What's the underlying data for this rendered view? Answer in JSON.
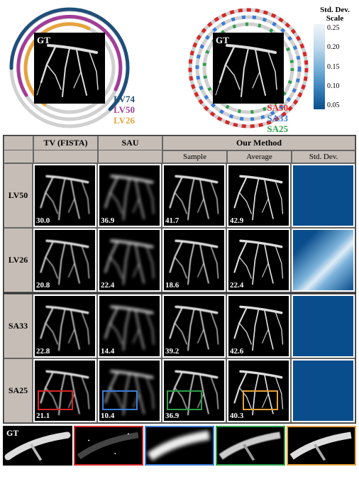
{
  "figure_type": "scientific-figure-comparison",
  "colors": {
    "lv74": "#1f4e79",
    "lv50": "#a23d97",
    "lv26": "#e8a33d",
    "sa50": "#d62728",
    "sa33": "#3b7dd8",
    "sa25": "#2e9e4a",
    "ring_gray": "#d0d0d0",
    "header_bg": "#c6bdb6",
    "border": "#666666",
    "std_dark": "#0a4d8c",
    "std_light": "#e0ecf6",
    "black": "#000000",
    "white": "#ffffff",
    "zoom_red": "#d62728",
    "zoom_blue": "#3b7dd8",
    "zoom_green": "#2e9e4a",
    "zoom_yellow": "#e8a33d"
  },
  "top": {
    "gt_label": "GT",
    "lv_labels": [
      {
        "text": "LV74",
        "color": "#1f4e79"
      },
      {
        "text": "LV50",
        "color": "#a23d97"
      },
      {
        "text": "LV26",
        "color": "#e8a33d"
      }
    ],
    "sa_labels": [
      {
        "text": "SA50",
        "color": "#d62728"
      },
      {
        "text": "SA33",
        "color": "#3b7dd8"
      },
      {
        "text": "SA25",
        "color": "#2e9e4a"
      }
    ],
    "colorbar": {
      "title": "Std. Dev. Scale",
      "ticks": [
        "0.25",
        "0.20",
        "0.15",
        "0.10",
        "0.05"
      ]
    }
  },
  "headers": {
    "empty": "",
    "tv": "TV (FISTA)",
    "sau": "SAU",
    "our": "Our Method",
    "sample": "Sample",
    "average": "Average",
    "std": "Std. Dev."
  },
  "rows": [
    {
      "label": "LV50",
      "tv": "30.0",
      "sau": "36.9",
      "sample": "41.7",
      "average": "42.9",
      "std_variant": "dark"
    },
    {
      "label": "LV26",
      "tv": "20.8",
      "sau": "22.4",
      "sample": "18.6",
      "average": "22.4",
      "std_variant": "light"
    },
    {
      "label": "SA33",
      "tv": "22.8",
      "sau": "14.4",
      "sample": "39.2",
      "average": "42.6",
      "std_variant": "dark"
    },
    {
      "label": "SA25",
      "tv": "21.1",
      "sau": "10.4",
      "sample": "36.9",
      "average": "40.3",
      "std_variant": "dark",
      "zoom": true
    }
  ],
  "strip": {
    "gt_label": "GT",
    "borders": [
      "#000000",
      "#d62728",
      "#3b7dd8",
      "#2e9e4a",
      "#e8a33d"
    ]
  }
}
